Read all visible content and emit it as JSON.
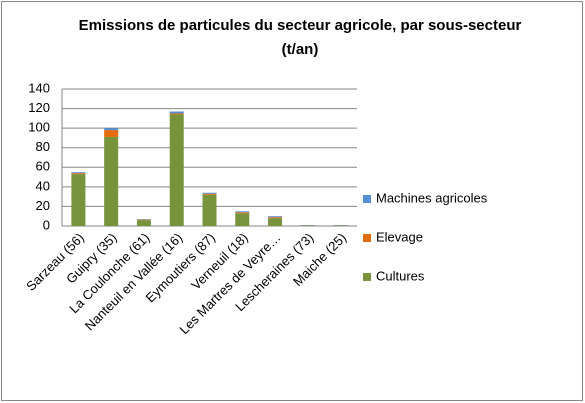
{
  "chart_data": {
    "type": "stacked_bar",
    "title": "Emissions de particules du secteur agricole, par sous-secteur (t/an)",
    "categories": [
      "Sarzeau (56)",
      "Guipry (35)",
      "La Coulonche (61)",
      "Nanteuil en Vallée (16)",
      "Eymoutiers (87)",
      "Verneuil (18)",
      "Les Martres de Veyre…",
      "Lescheraines (73)",
      "Maiche (25)"
    ],
    "series": [
      {
        "name": "Cultures",
        "color": "#77933c",
        "values": [
          53,
          91,
          6,
          114,
          32,
          13,
          8,
          0.5,
          0.5
        ]
      },
      {
        "name": "Elevage",
        "color": "#e46c0a",
        "values": [
          1,
          7,
          0.5,
          1,
          1,
          1,
          1,
          0.2,
          0.2
        ]
      },
      {
        "name": "Machines agricoles",
        "color": "#558ed5",
        "values": [
          1,
          2,
          0.5,
          2,
          1,
          1,
          1,
          0.3,
          0.3
        ]
      }
    ],
    "ylim": [
      0,
      140
    ],
    "yticks": [
      0,
      20,
      40,
      60,
      80,
      100,
      120,
      140
    ],
    "grid": true,
    "legend": "right"
  }
}
